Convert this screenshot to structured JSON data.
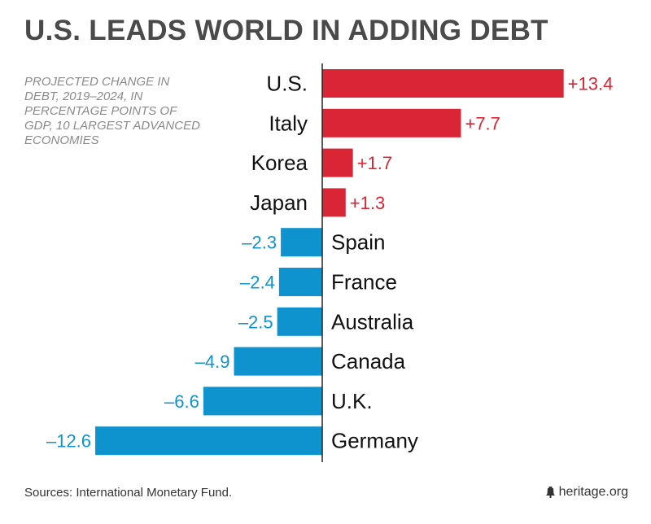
{
  "title": "U.S. LEADS WORLD IN ADDING DEBT",
  "subtitle": "Projected change in debt, 2019–2024, in percentage points of GDP, 10 largest advanced economies",
  "source": "Sources: International Monetary Fund.",
  "brand": "heritage.org",
  "brand_icon": "liberty-bell-icon",
  "colors": {
    "positive": "#d92534",
    "negative": "#0f93cf",
    "axis": "#222222",
    "text": "#111111"
  },
  "chart_data": {
    "type": "bar",
    "orientation": "horizontal",
    "categories": [
      "U.S.",
      "Italy",
      "Korea",
      "Japan",
      "Spain",
      "France",
      "Australia",
      "Canada",
      "U.K.",
      "Germany"
    ],
    "values": [
      13.4,
      7.7,
      1.7,
      1.3,
      -2.3,
      -2.4,
      -2.5,
      -4.9,
      -6.6,
      -12.6
    ],
    "value_labels": [
      "+13.4",
      "+7.7",
      "+1.7",
      "+1.3",
      "–2.3",
      "–2.4",
      "–2.5",
      "–4.9",
      "–6.6",
      "–12.6"
    ],
    "xlim": [
      -12.6,
      13.4
    ],
    "grid": false
  }
}
